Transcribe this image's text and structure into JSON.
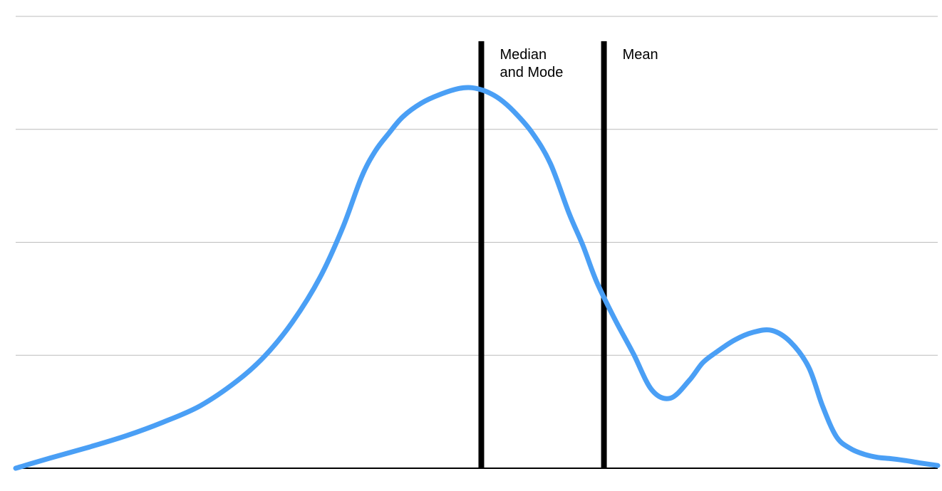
{
  "chart_data": {
    "type": "line",
    "title": "",
    "xlabel": "",
    "ylabel": "",
    "grid": true,
    "xlim": [
      0,
      100
    ],
    "ylim": [
      0,
      100
    ],
    "gridlines_y": [
      25,
      50,
      75,
      100
    ],
    "curve_color": "#4a9ff5",
    "series": [
      {
        "x": [
          0,
          4,
          8,
          12,
          16,
          20,
          24,
          27,
          30,
          33,
          35.5,
          37.5,
          39,
          40.5,
          42,
          44,
          46,
          48,
          49.5,
          51,
          52.5,
          54,
          56,
          58,
          60,
          61.5,
          63,
          65,
          67,
          69,
          71,
          73,
          74.5,
          76,
          78,
          80,
          82,
          84,
          86,
          87.5,
          89,
          90.5,
          92,
          93.5,
          95,
          96.5,
          98,
          100
        ],
        "y": [
          0,
          2.4,
          4.7,
          7.2,
          10.2,
          13.8,
          19.3,
          24.8,
          32.3,
          42.2,
          53.4,
          64.4,
          70.2,
          74.2,
          77.8,
          80.8,
          82.7,
          84.0,
          84.2,
          83.4,
          81.7,
          79.0,
          74.3,
          67.4,
          56.5,
          49.4,
          41.3,
          32.9,
          25.3,
          17.3,
          15.5,
          19.3,
          23.3,
          25.7,
          28.4,
          30.1,
          30.5,
          28.0,
          22.4,
          13.8,
          7.0,
          4.4,
          3.1,
          2.4,
          2.1,
          1.7,
          1.2,
          0.6
        ]
      }
    ],
    "markers": [
      {
        "label_lines": [
          "Median",
          "and Mode"
        ],
        "x": 50.5,
        "top": 94.5
      },
      {
        "label_lines": [
          "Mean"
        ],
        "x": 63.8,
        "top": 94.5
      }
    ]
  }
}
